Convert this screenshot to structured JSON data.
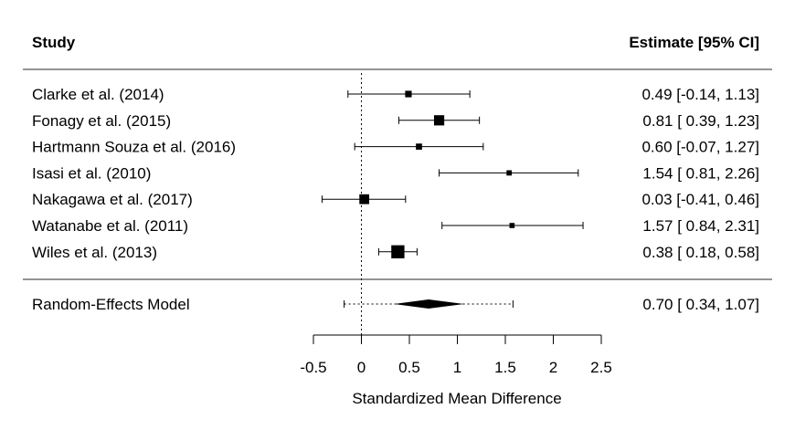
{
  "chart_data": {
    "type": "forest",
    "headers": {
      "study": "Study",
      "estimate": "Estimate [95% CI]"
    },
    "xlabel": "Standardized Mean Difference",
    "xlim": [
      -0.5,
      2.5
    ],
    "ticks": [
      -0.5,
      0,
      0.5,
      1,
      1.5,
      2,
      2.5
    ],
    "tick_labels": [
      "-0.5",
      "0",
      "0.5",
      "1",
      "1.5",
      "2",
      "2.5"
    ],
    "reference_line": 0,
    "studies": [
      {
        "name": "Clarke et al. (2014)",
        "estimate": 0.49,
        "lower": -0.14,
        "upper": 1.13,
        "weight": 0.55,
        "label": "0.49 [-0.14, 1.13]"
      },
      {
        "name": "Fonagy et al. (2015)",
        "estimate": 0.81,
        "lower": 0.39,
        "upper": 1.23,
        "weight": 1.0,
        "label": "0.81 [ 0.39, 1.23]"
      },
      {
        "name": "Hartmann Souza et al. (2016)",
        "estimate": 0.6,
        "lower": -0.07,
        "upper": 1.27,
        "weight": 0.5,
        "label": "0.60 [-0.07, 1.27]"
      },
      {
        "name": "Isasi et al. (2010)",
        "estimate": 1.54,
        "lower": 0.81,
        "upper": 2.26,
        "weight": 0.4,
        "label": "1.54 [ 0.81, 2.26]"
      },
      {
        "name": "Nakagawa et al. (2017)",
        "estimate": 0.03,
        "lower": -0.41,
        "upper": 0.46,
        "weight": 0.95,
        "label": "0.03 [-0.41, 0.46]"
      },
      {
        "name": "Watanabe et al. (2011)",
        "estimate": 1.57,
        "lower": 0.84,
        "upper": 2.31,
        "weight": 0.38,
        "label": "1.57 [ 0.84, 2.31]"
      },
      {
        "name": "Wiles et al. (2013)",
        "estimate": 0.38,
        "lower": 0.18,
        "upper": 0.58,
        "weight": 1.35,
        "label": "0.38 [ 0.18, 0.58]"
      }
    ],
    "summary": {
      "name": "Random-Effects Model",
      "estimate": 0.7,
      "lower": 0.34,
      "upper": 1.07,
      "pi_lower": -0.18,
      "pi_upper": 1.58,
      "label": "0.70 [ 0.34, 1.07]"
    }
  }
}
